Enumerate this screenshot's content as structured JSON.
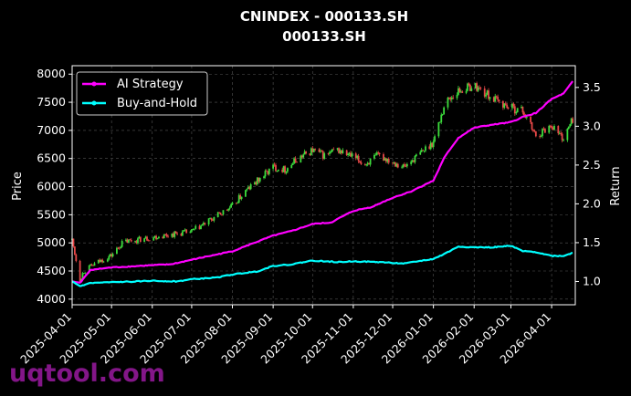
{
  "chart_data": {
    "type": "line",
    "title": "CNINDEX - 000133.SH",
    "subtitle": "000133.SH",
    "xlabel": "",
    "ylabel": "Price",
    "y2label": "Return",
    "x_ticks": [
      "2025-04-01",
      "2025-05-01",
      "2025-06-01",
      "2025-07-01",
      "2025-08-01",
      "2025-09-01",
      "2025-10-01",
      "2025-11-01",
      "2025-12-01",
      "2026-01-01",
      "2026-02-01",
      "2026-03-01",
      "2026-04-01"
    ],
    "y_ticks": [
      "4000",
      "4500",
      "5000",
      "5500",
      "6000",
      "6500",
      "7000",
      "7500",
      "8000"
    ],
    "y2_ticks": [
      "1.0",
      "1.5",
      "2.0",
      "2.5",
      "3.0",
      "3.5"
    ],
    "ylim": [
      3900,
      8150
    ],
    "y2lim": [
      0.7,
      3.78
    ],
    "xlim": [
      "2025-04-01",
      "2026-04-19"
    ],
    "grid": true,
    "legend_position": "top-left",
    "price_anchors": {
      "dates": [
        "2025-04-01",
        "2025-04-07",
        "2025-04-10",
        "2025-04-20",
        "2025-05-01",
        "2025-05-10",
        "2025-05-20",
        "2025-06-01",
        "2025-06-15",
        "2025-07-01",
        "2025-07-15",
        "2025-08-01",
        "2025-08-10",
        "2025-08-20",
        "2025-09-01",
        "2025-09-10",
        "2025-09-20",
        "2025-10-01",
        "2025-10-10",
        "2025-10-20",
        "2025-11-01",
        "2025-11-10",
        "2025-11-20",
        "2025-12-01",
        "2025-12-10",
        "2025-12-20",
        "2026-01-01",
        "2026-01-10",
        "2026-01-20",
        "2026-02-01",
        "2026-02-10",
        "2026-02-20",
        "2026-03-01",
        "2026-03-10",
        "2026-03-20",
        "2026-04-01",
        "2026-04-10",
        "2026-04-19"
      ],
      "values": [
        5050,
        4350,
        4500,
        4650,
        4780,
        5020,
        5050,
        5100,
        5150,
        5200,
        5400,
        5650,
        5900,
        6100,
        6350,
        6300,
        6500,
        6650,
        6550,
        6650,
        6520,
        6400,
        6550,
        6450,
        6350,
        6550,
        6800,
        7500,
        7700,
        7800,
        7650,
        7500,
        7400,
        7350,
        6900,
        7100,
        6850,
        7300
      ]
    },
    "series": [
      {
        "name": "AI Strategy",
        "color": "#ff00ff",
        "dates": [
          "2025-04-01",
          "2025-04-07",
          "2025-04-15",
          "2025-05-01",
          "2025-06-01",
          "2025-06-15",
          "2025-07-01",
          "2025-08-01",
          "2025-08-15",
          "2025-09-01",
          "2025-09-15",
          "2025-10-01",
          "2025-10-15",
          "2025-11-01",
          "2025-11-15",
          "2025-12-01",
          "2025-12-15",
          "2026-01-01",
          "2026-01-10",
          "2026-01-20",
          "2026-02-01",
          "2026-02-15",
          "2026-03-01",
          "2026-03-10",
          "2026-03-20",
          "2026-04-01",
          "2026-04-10",
          "2026-04-19"
        ],
        "values": [
          1.0,
          0.98,
          1.15,
          1.18,
          1.21,
          1.22,
          1.28,
          1.39,
          1.48,
          1.59,
          1.65,
          1.74,
          1.76,
          1.91,
          1.96,
          2.08,
          2.16,
          2.3,
          2.62,
          2.85,
          2.98,
          3.02,
          3.05,
          3.12,
          3.17,
          3.35,
          3.42,
          3.62
        ]
      },
      {
        "name": "Buy-and-Hold",
        "color": "#00ffff",
        "dates": [
          "2025-04-01",
          "2025-04-07",
          "2025-04-15",
          "2025-05-01",
          "2025-05-20",
          "2025-06-01",
          "2025-06-20",
          "2025-07-01",
          "2025-07-20",
          "2025-08-01",
          "2025-08-20",
          "2025-09-01",
          "2025-09-15",
          "2025-10-01",
          "2025-10-20",
          "2025-11-01",
          "2025-11-20",
          "2025-12-01",
          "2025-12-10",
          "2025-12-20",
          "2026-01-01",
          "2026-01-10",
          "2026-01-20",
          "2026-02-01",
          "2026-02-15",
          "2026-03-01",
          "2026-03-10",
          "2026-03-20",
          "2026-04-01",
          "2026-04-10",
          "2026-04-19"
        ],
        "values": [
          1.0,
          0.94,
          0.98,
          0.99,
          1.0,
          1.01,
          1.0,
          1.03,
          1.05,
          1.09,
          1.13,
          1.2,
          1.22,
          1.27,
          1.25,
          1.26,
          1.25,
          1.24,
          1.23,
          1.26,
          1.29,
          1.36,
          1.45,
          1.44,
          1.44,
          1.46,
          1.39,
          1.38,
          1.33,
          1.33,
          1.38
        ]
      }
    ]
  },
  "watermark": "uqtool.com"
}
